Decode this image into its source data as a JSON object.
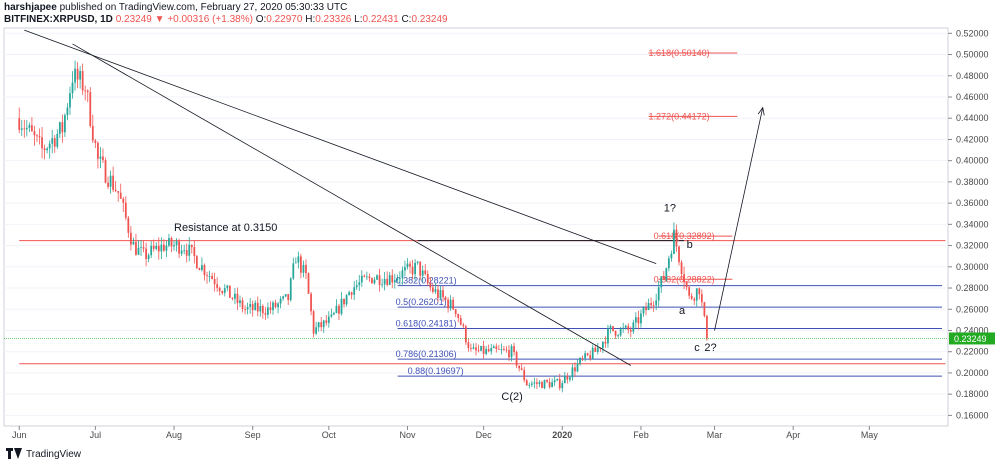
{
  "header": {
    "publisher": "harshjapee",
    "published_text": "published on TradingView.com, February 27, 2020 05:30:33 UTC",
    "symbol": "BITFINEX:XRPUSD, 1D",
    "last": "0.23249",
    "change": "+0.00316 (+1.38%)",
    "o_label": "O:",
    "o_value": "0.22970",
    "h_label": "H:",
    "h_value": "0.23326",
    "l_label": "L:",
    "l_value": "0.22431",
    "c_label": "C:",
    "c_value": "0.23249"
  },
  "footer": {
    "brand": "TradingView",
    "logo_icon": "tradingview-logo-icon"
  },
  "colors": {
    "up": "#26a69a",
    "down": "#ef5350",
    "fib": "#3f51b5",
    "ext": "#ef5350",
    "trend": "#131722",
    "last_price": "#22ab22"
  },
  "chart_data": {
    "type": "candlestick",
    "title": "",
    "x_axis": {
      "ticks": [
        "Jun",
        "Jul",
        "Aug",
        "Sep",
        "Oct",
        "Nov",
        "Dec",
        "2020",
        "Feb",
        "Mar",
        "Apr",
        "May"
      ]
    },
    "y_axis": {
      "ylim": [
        0.15,
        0.525
      ],
      "ticks": [
        0.52,
        0.5,
        0.48,
        0.46,
        0.44,
        0.42,
        0.4,
        0.38,
        0.36,
        0.34,
        0.32,
        0.3,
        0.28,
        0.26,
        0.24,
        0.22,
        0.2,
        0.18,
        0.16
      ],
      "tick_labels": [
        "0.52000",
        "0.50000",
        "0.48000",
        "0.46000",
        "0.44000",
        "0.42000",
        "0.40000",
        "0.38000",
        "0.36000",
        "0.34000",
        "0.32000",
        "0.30000",
        "0.28000",
        "0.26000",
        "0.24000",
        "0.22000",
        "0.20000",
        "0.18000",
        "0.16000"
      ]
    },
    "last_price": {
      "value": 0.23249,
      "label": "0.23249"
    },
    "price_path": [
      [
        "2019-06-01",
        0.44
      ],
      [
        "2019-06-10",
        0.41
      ],
      [
        "2019-06-18",
        0.43
      ],
      [
        "2019-06-22",
        0.48
      ],
      [
        "2019-06-27",
        0.47
      ],
      [
        "2019-07-02",
        0.4
      ],
      [
        "2019-07-10",
        0.37
      ],
      [
        "2019-07-16",
        0.32
      ],
      [
        "2019-07-20",
        0.31
      ],
      [
        "2019-07-28",
        0.32
      ],
      [
        "2019-08-05",
        0.32
      ],
      [
        "2019-08-12",
        0.3
      ],
      [
        "2019-08-20",
        0.28
      ],
      [
        "2019-08-29",
        0.26
      ],
      [
        "2019-09-08",
        0.26
      ],
      [
        "2019-09-15",
        0.27
      ],
      [
        "2019-09-18",
        0.31
      ],
      [
        "2019-09-22",
        0.29
      ],
      [
        "2019-09-25",
        0.24
      ],
      [
        "2019-10-02",
        0.25
      ],
      [
        "2019-10-10",
        0.28
      ],
      [
        "2019-10-18",
        0.29
      ],
      [
        "2019-10-26",
        0.29
      ],
      [
        "2019-11-05",
        0.3
      ],
      [
        "2019-11-10",
        0.28
      ],
      [
        "2019-11-20",
        0.26
      ],
      [
        "2019-11-26",
        0.22
      ],
      [
        "2019-12-05",
        0.22
      ],
      [
        "2019-12-12",
        0.22
      ],
      [
        "2019-12-18",
        0.19
      ],
      [
        "2019-12-31",
        0.19
      ],
      [
        "2020-01-08",
        0.21
      ],
      [
        "2020-01-14",
        0.22
      ],
      [
        "2020-01-20",
        0.24
      ],
      [
        "2020-01-28",
        0.24
      ],
      [
        "2020-02-06",
        0.27
      ],
      [
        "2020-02-10",
        0.29
      ],
      [
        "2020-02-14",
        0.33
      ],
      [
        "2020-02-17",
        0.3
      ],
      [
        "2020-02-20",
        0.27
      ],
      [
        "2020-02-24",
        0.28
      ],
      [
        "2020-02-27",
        0.2325
      ]
    ],
    "horizontal_lines": [
      {
        "value": 0.3247,
        "color": "#ef5350",
        "from": "2019-06-01",
        "to": "2020-05-31"
      },
      {
        "value": 0.2086,
        "color": "#ef5350",
        "from": "2019-06-01",
        "to": "2020-05-31"
      },
      {
        "value": 0.3247,
        "color": "#131722",
        "from": "2019-11-05",
        "to": "2020-02-18"
      }
    ],
    "fib_retracement": [
      {
        "label": "0.382(0.28221)",
        "value": 0.28221
      },
      {
        "label": "0.5(0.26201)",
        "value": 0.26201
      },
      {
        "label": "0.618(0.24181)",
        "value": 0.24181
      },
      {
        "label": "0.786(0.21306)",
        "value": 0.21306
      },
      {
        "label": "0.88(0.19697)",
        "value": 0.19697
      }
    ],
    "fib_extension": [
      {
        "label": "1.618(0.50140)",
        "value": 0.5014
      },
      {
        "label": "1.272(0.44172)",
        "value": 0.44172
      },
      {
        "label": "0.618(0.32892)",
        "value": 0.32892
      },
      {
        "label": "0.382(0.28822)",
        "value": 0.28822
      }
    ],
    "trendlines": [
      {
        "from": [
          "2019-06-03",
          0.523
        ],
        "to": [
          "2020-02-07",
          0.303
        ]
      },
      {
        "from": [
          "2019-06-22",
          0.51
        ],
        "to": [
          "2020-01-28",
          0.207
        ]
      }
    ],
    "projection_arrow": {
      "from": [
        "2020-03-01",
        0.24
      ],
      "to": [
        "2020-03-20",
        0.45
      ]
    },
    "annotations": [
      {
        "text": "Resistance at 0.3150",
        "x": "2019-08-01",
        "y": 0.3335
      },
      {
        "text": "1?",
        "x": "2020-02-10",
        "y": 0.352
      },
      {
        "text": "b",
        "x": "2020-02-19",
        "y": 0.3175
      },
      {
        "text": "a",
        "x": "2020-02-16",
        "y": 0.2555
      },
      {
        "text": "c",
        "x": "2020-02-22",
        "y": 0.2205
      },
      {
        "text": "2?",
        "x": "2020-02-26",
        "y": 0.2205
      },
      {
        "text": "C(2)",
        "x": "2019-12-08",
        "y": 0.1745
      }
    ]
  }
}
